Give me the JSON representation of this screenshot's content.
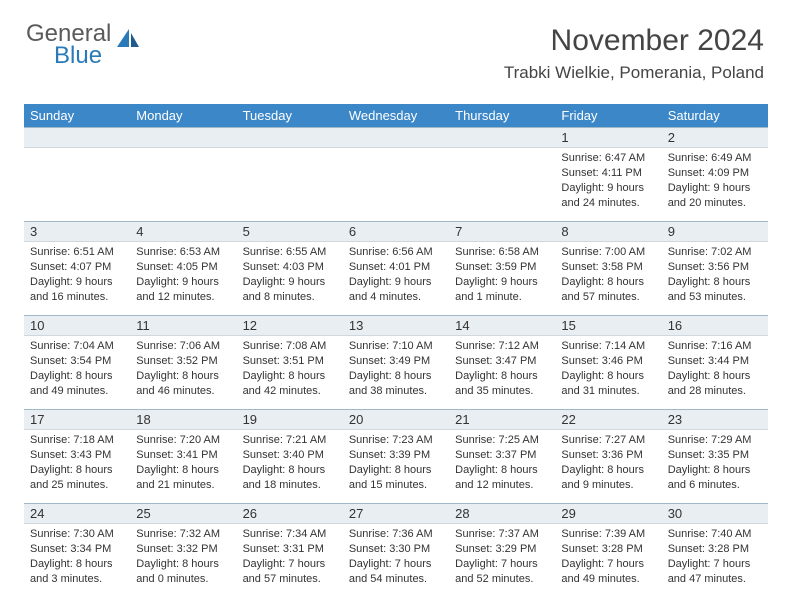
{
  "logo": {
    "text1": "General",
    "text2": "Blue"
  },
  "header": {
    "month_title": "November 2024",
    "location": "Trabki Wielkie, Pomerania, Poland"
  },
  "colors": {
    "header_bg": "#3b87c8",
    "header_text": "#ffffff",
    "daynum_bg": "#e9eef2",
    "cell_border": "#9fb8c8",
    "logo_blue": "#2a7ab8",
    "text": "#333333"
  },
  "weekdays": [
    "Sunday",
    "Monday",
    "Tuesday",
    "Wednesday",
    "Thursday",
    "Friday",
    "Saturday"
  ],
  "weeks": [
    [
      null,
      null,
      null,
      null,
      null,
      {
        "n": "1",
        "sunrise": "Sunrise: 6:47 AM",
        "sunset": "Sunset: 4:11 PM",
        "daylight1": "Daylight: 9 hours",
        "daylight2": "and 24 minutes."
      },
      {
        "n": "2",
        "sunrise": "Sunrise: 6:49 AM",
        "sunset": "Sunset: 4:09 PM",
        "daylight1": "Daylight: 9 hours",
        "daylight2": "and 20 minutes."
      }
    ],
    [
      {
        "n": "3",
        "sunrise": "Sunrise: 6:51 AM",
        "sunset": "Sunset: 4:07 PM",
        "daylight1": "Daylight: 9 hours",
        "daylight2": "and 16 minutes."
      },
      {
        "n": "4",
        "sunrise": "Sunrise: 6:53 AM",
        "sunset": "Sunset: 4:05 PM",
        "daylight1": "Daylight: 9 hours",
        "daylight2": "and 12 minutes."
      },
      {
        "n": "5",
        "sunrise": "Sunrise: 6:55 AM",
        "sunset": "Sunset: 4:03 PM",
        "daylight1": "Daylight: 9 hours",
        "daylight2": "and 8 minutes."
      },
      {
        "n": "6",
        "sunrise": "Sunrise: 6:56 AM",
        "sunset": "Sunset: 4:01 PM",
        "daylight1": "Daylight: 9 hours",
        "daylight2": "and 4 minutes."
      },
      {
        "n": "7",
        "sunrise": "Sunrise: 6:58 AM",
        "sunset": "Sunset: 3:59 PM",
        "daylight1": "Daylight: 9 hours",
        "daylight2": "and 1 minute."
      },
      {
        "n": "8",
        "sunrise": "Sunrise: 7:00 AM",
        "sunset": "Sunset: 3:58 PM",
        "daylight1": "Daylight: 8 hours",
        "daylight2": "and 57 minutes."
      },
      {
        "n": "9",
        "sunrise": "Sunrise: 7:02 AM",
        "sunset": "Sunset: 3:56 PM",
        "daylight1": "Daylight: 8 hours",
        "daylight2": "and 53 minutes."
      }
    ],
    [
      {
        "n": "10",
        "sunrise": "Sunrise: 7:04 AM",
        "sunset": "Sunset: 3:54 PM",
        "daylight1": "Daylight: 8 hours",
        "daylight2": "and 49 minutes."
      },
      {
        "n": "11",
        "sunrise": "Sunrise: 7:06 AM",
        "sunset": "Sunset: 3:52 PM",
        "daylight1": "Daylight: 8 hours",
        "daylight2": "and 46 minutes."
      },
      {
        "n": "12",
        "sunrise": "Sunrise: 7:08 AM",
        "sunset": "Sunset: 3:51 PM",
        "daylight1": "Daylight: 8 hours",
        "daylight2": "and 42 minutes."
      },
      {
        "n": "13",
        "sunrise": "Sunrise: 7:10 AM",
        "sunset": "Sunset: 3:49 PM",
        "daylight1": "Daylight: 8 hours",
        "daylight2": "and 38 minutes."
      },
      {
        "n": "14",
        "sunrise": "Sunrise: 7:12 AM",
        "sunset": "Sunset: 3:47 PM",
        "daylight1": "Daylight: 8 hours",
        "daylight2": "and 35 minutes."
      },
      {
        "n": "15",
        "sunrise": "Sunrise: 7:14 AM",
        "sunset": "Sunset: 3:46 PM",
        "daylight1": "Daylight: 8 hours",
        "daylight2": "and 31 minutes."
      },
      {
        "n": "16",
        "sunrise": "Sunrise: 7:16 AM",
        "sunset": "Sunset: 3:44 PM",
        "daylight1": "Daylight: 8 hours",
        "daylight2": "and 28 minutes."
      }
    ],
    [
      {
        "n": "17",
        "sunrise": "Sunrise: 7:18 AM",
        "sunset": "Sunset: 3:43 PM",
        "daylight1": "Daylight: 8 hours",
        "daylight2": "and 25 minutes."
      },
      {
        "n": "18",
        "sunrise": "Sunrise: 7:20 AM",
        "sunset": "Sunset: 3:41 PM",
        "daylight1": "Daylight: 8 hours",
        "daylight2": "and 21 minutes."
      },
      {
        "n": "19",
        "sunrise": "Sunrise: 7:21 AM",
        "sunset": "Sunset: 3:40 PM",
        "daylight1": "Daylight: 8 hours",
        "daylight2": "and 18 minutes."
      },
      {
        "n": "20",
        "sunrise": "Sunrise: 7:23 AM",
        "sunset": "Sunset: 3:39 PM",
        "daylight1": "Daylight: 8 hours",
        "daylight2": "and 15 minutes."
      },
      {
        "n": "21",
        "sunrise": "Sunrise: 7:25 AM",
        "sunset": "Sunset: 3:37 PM",
        "daylight1": "Daylight: 8 hours",
        "daylight2": "and 12 minutes."
      },
      {
        "n": "22",
        "sunrise": "Sunrise: 7:27 AM",
        "sunset": "Sunset: 3:36 PM",
        "daylight1": "Daylight: 8 hours",
        "daylight2": "and 9 minutes."
      },
      {
        "n": "23",
        "sunrise": "Sunrise: 7:29 AM",
        "sunset": "Sunset: 3:35 PM",
        "daylight1": "Daylight: 8 hours",
        "daylight2": "and 6 minutes."
      }
    ],
    [
      {
        "n": "24",
        "sunrise": "Sunrise: 7:30 AM",
        "sunset": "Sunset: 3:34 PM",
        "daylight1": "Daylight: 8 hours",
        "daylight2": "and 3 minutes."
      },
      {
        "n": "25",
        "sunrise": "Sunrise: 7:32 AM",
        "sunset": "Sunset: 3:32 PM",
        "daylight1": "Daylight: 8 hours",
        "daylight2": "and 0 minutes."
      },
      {
        "n": "26",
        "sunrise": "Sunrise: 7:34 AM",
        "sunset": "Sunset: 3:31 PM",
        "daylight1": "Daylight: 7 hours",
        "daylight2": "and 57 minutes."
      },
      {
        "n": "27",
        "sunrise": "Sunrise: 7:36 AM",
        "sunset": "Sunset: 3:30 PM",
        "daylight1": "Daylight: 7 hours",
        "daylight2": "and 54 minutes."
      },
      {
        "n": "28",
        "sunrise": "Sunrise: 7:37 AM",
        "sunset": "Sunset: 3:29 PM",
        "daylight1": "Daylight: 7 hours",
        "daylight2": "and 52 minutes."
      },
      {
        "n": "29",
        "sunrise": "Sunrise: 7:39 AM",
        "sunset": "Sunset: 3:28 PM",
        "daylight1": "Daylight: 7 hours",
        "daylight2": "and 49 minutes."
      },
      {
        "n": "30",
        "sunrise": "Sunrise: 7:40 AM",
        "sunset": "Sunset: 3:28 PM",
        "daylight1": "Daylight: 7 hours",
        "daylight2": "and 47 minutes."
      }
    ]
  ]
}
